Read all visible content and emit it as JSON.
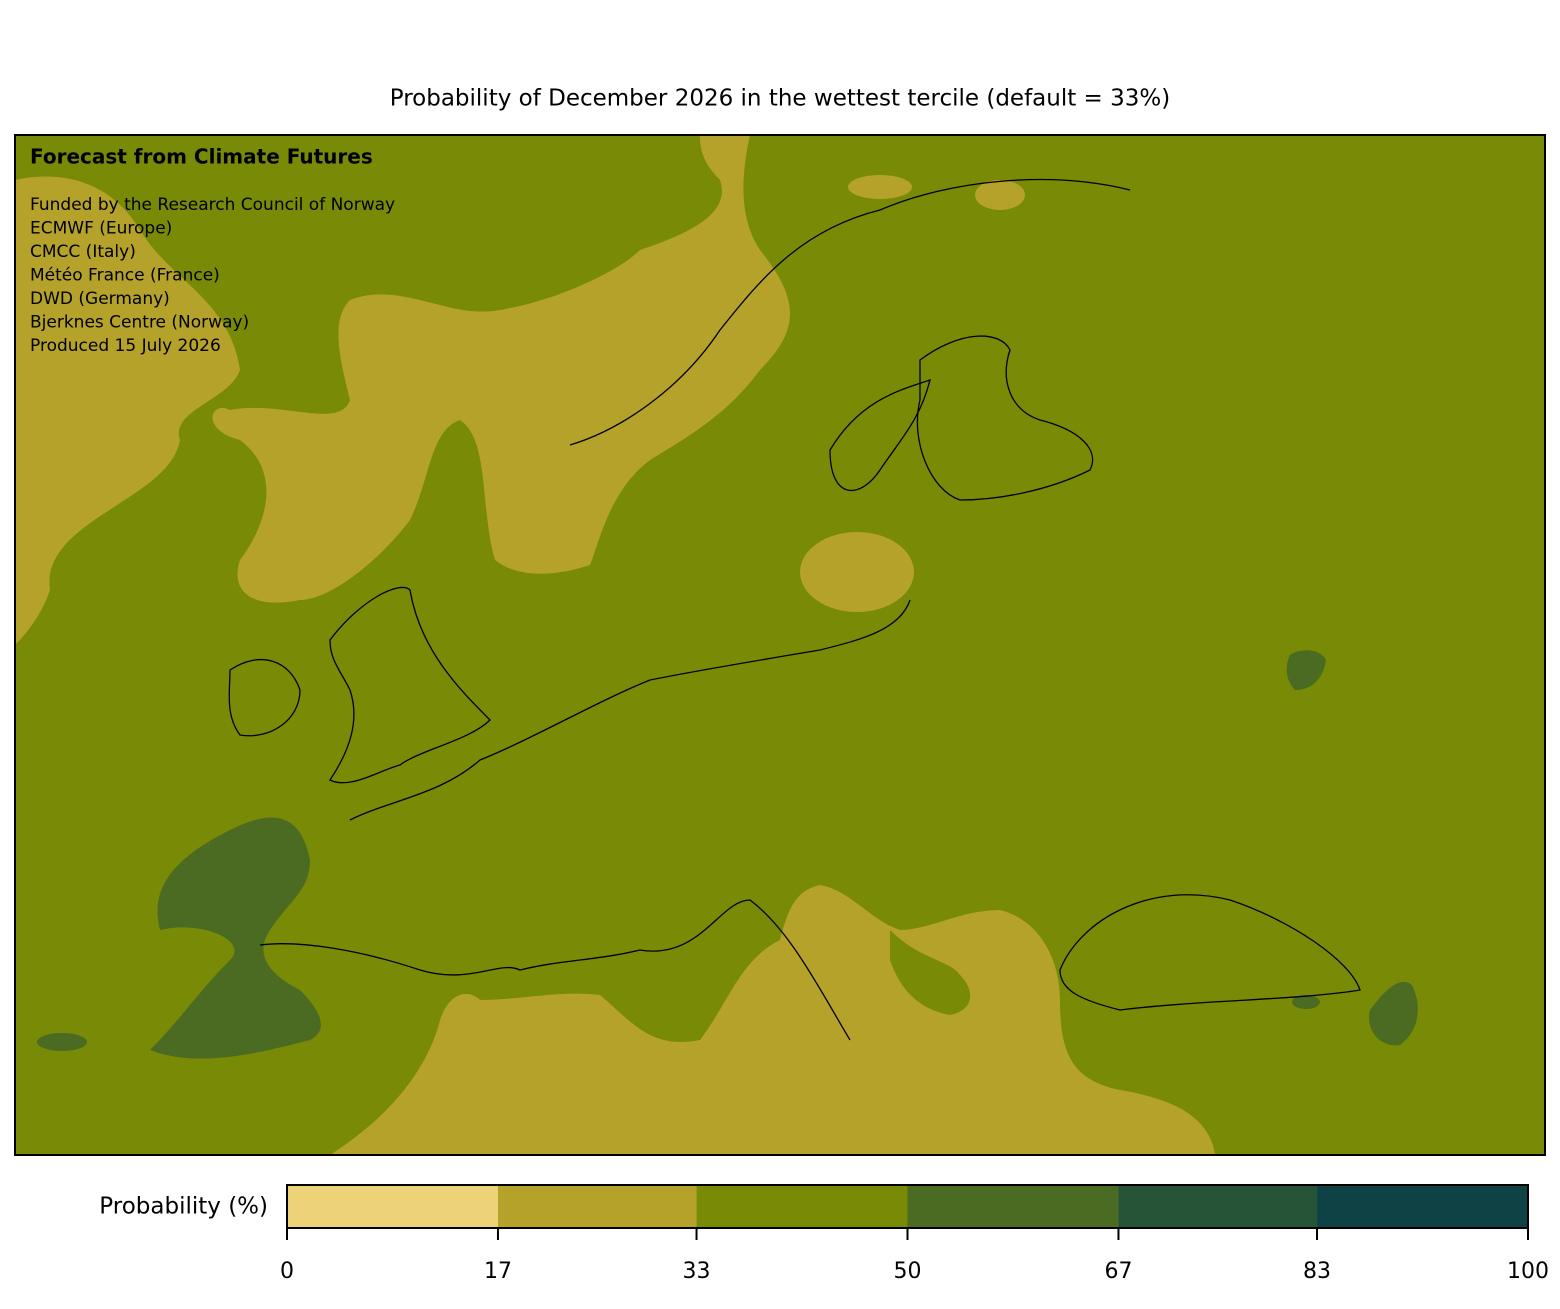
{
  "title": "Probability of December 2026 in the wettest tercile (default = 33%)",
  "map": {
    "heading": "Forecast from Climate Futures",
    "credits": [
      "Funded by the Research Council of Norway",
      "ECMWF (Europe)",
      "CMCC (Italy)",
      "Météo France (France)",
      "DWD (Germany)",
      "Bjerknes Centre (Norway)",
      "Produced 15 July 2026"
    ]
  },
  "colorbar": {
    "label": "Probability (%)",
    "lim": [
      0,
      100
    ],
    "bounds": [
      0,
      17,
      33,
      50,
      67,
      83,
      100
    ],
    "colors": [
      "#edd277",
      "#b5a22a",
      "#798a07",
      "#4a6b21",
      "#255436",
      "#0e4245"
    ]
  }
}
